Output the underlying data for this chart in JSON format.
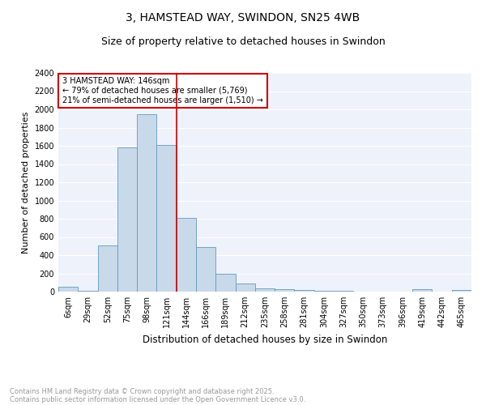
{
  "title": "3, HAMSTEAD WAY, SWINDON, SN25 4WB",
  "subtitle": "Size of property relative to detached houses in Swindon",
  "xlabel": "Distribution of detached houses by size in Swindon",
  "ylabel": "Number of detached properties",
  "bar_color": "#c8d9ea",
  "bar_edgecolor": "#6699bb",
  "background_color": "#eef2fb",
  "grid_color": "#ffffff",
  "categories": [
    "6sqm",
    "29sqm",
    "52sqm",
    "75sqm",
    "98sqm",
    "121sqm",
    "144sqm",
    "166sqm",
    "189sqm",
    "212sqm",
    "235sqm",
    "258sqm",
    "281sqm",
    "304sqm",
    "327sqm",
    "350sqm",
    "373sqm",
    "396sqm",
    "419sqm",
    "442sqm",
    "465sqm"
  ],
  "values": [
    50,
    5,
    510,
    1585,
    1950,
    1610,
    805,
    490,
    200,
    90,
    40,
    25,
    20,
    10,
    5,
    0,
    0,
    0,
    25,
    0,
    20
  ],
  "ylim": [
    0,
    2400
  ],
  "yticks": [
    0,
    200,
    400,
    600,
    800,
    1000,
    1200,
    1400,
    1600,
    1800,
    2000,
    2200,
    2400
  ],
  "vline_category_index": 6,
  "annotation_title": "3 HAMSTEAD WAY: 146sqm",
  "annotation_line1": "← 79% of detached houses are smaller (5,769)",
  "annotation_line2": "21% of semi-detached houses are larger (1,510) →",
  "annotation_box_color": "#ffffff",
  "annotation_box_edgecolor": "#cc0000",
  "vline_color": "#cc0000",
  "footer_line1": "Contains HM Land Registry data © Crown copyright and database right 2025.",
  "footer_line2": "Contains public sector information licensed under the Open Government Licence v3.0.",
  "footer_color": "#999999",
  "title_fontsize": 10,
  "subtitle_fontsize": 9,
  "ylabel_fontsize": 8,
  "xlabel_fontsize": 8.5,
  "tick_fontsize": 7,
  "annotation_fontsize": 7,
  "footer_fontsize": 6
}
